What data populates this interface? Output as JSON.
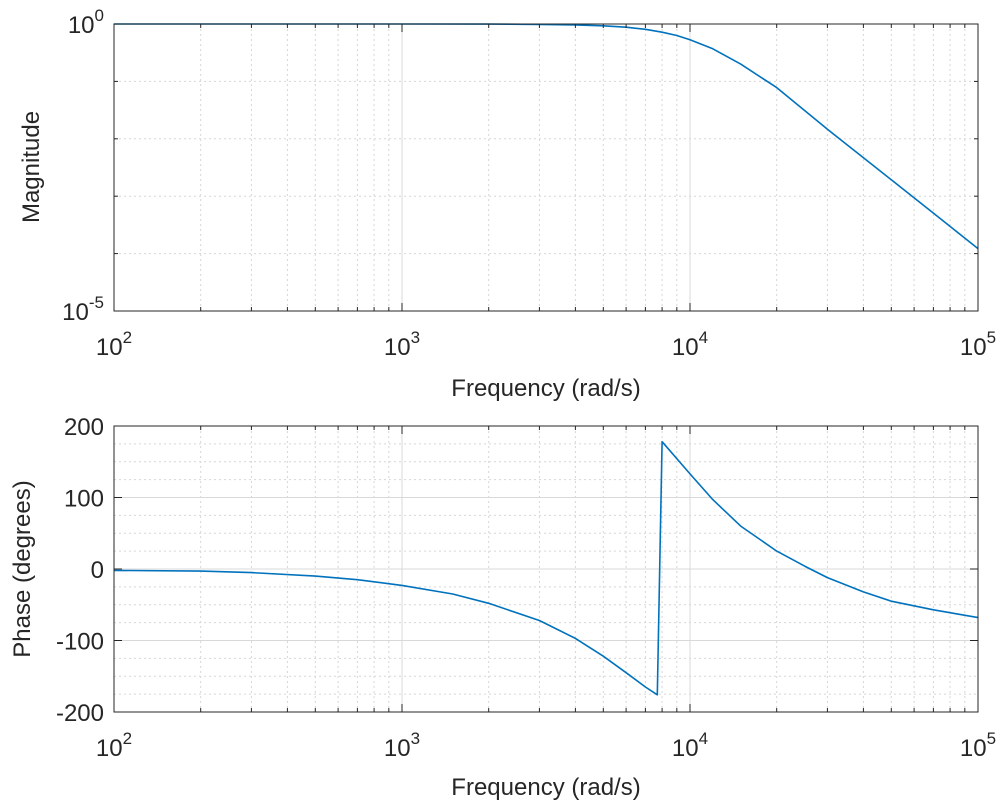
{
  "chart_data": [
    {
      "type": "line",
      "xlabel": "Frequency (rad/s)",
      "ylabel": "Magnitude",
      "xscale": "log",
      "yscale": "log",
      "xlim": [
        100,
        100000
      ],
      "ylim": [
        1e-05,
        1
      ],
      "x_ticks": [
        {
          "value": 100,
          "base": "10",
          "exp": "2"
        },
        {
          "value": 1000,
          "base": "10",
          "exp": "3"
        },
        {
          "value": 10000,
          "base": "10",
          "exp": "4"
        },
        {
          "value": 100000,
          "base": "10",
          "exp": "5"
        }
      ],
      "y_ticks": [
        {
          "value": 1e-05,
          "base": "10",
          "exp": "-5"
        },
        {
          "value": 1,
          "base": "10",
          "exp": "0"
        }
      ],
      "grid": true,
      "minor_grid": true,
      "series": [
        {
          "color": "#0072BD",
          "x": [
            100,
            300,
            1000,
            2000,
            3000,
            4000,
            5000,
            6000,
            7000,
            8000,
            9000,
            10000,
            12000,
            15000,
            20000,
            30000,
            50000,
            70000,
            100000
          ],
          "y": [
            1,
            1,
            1,
            0.995,
            0.985,
            0.965,
            0.93,
            0.88,
            0.81,
            0.72,
            0.63,
            0.53,
            0.37,
            0.2,
            0.078,
            0.0147,
            0.00193,
            0.000507,
            0.000122
          ]
        }
      ]
    },
    {
      "type": "line",
      "xlabel": "Frequency (rad/s)",
      "ylabel": "Phase (degrees)",
      "xscale": "log",
      "xlim": [
        100,
        100000
      ],
      "ylim": [
        -200,
        200
      ],
      "x_ticks": [
        {
          "value": 100,
          "base": "10",
          "exp": "2"
        },
        {
          "value": 1000,
          "base": "10",
          "exp": "3"
        },
        {
          "value": 10000,
          "base": "10",
          "exp": "4"
        },
        {
          "value": 100000,
          "base": "10",
          "exp": "5"
        }
      ],
      "y_ticks": [
        {
          "value": 200,
          "label": "200"
        },
        {
          "value": 100,
          "label": "100"
        },
        {
          "value": 0,
          "label": "0"
        },
        {
          "value": -100,
          "label": "-100"
        },
        {
          "value": -200,
          "label": "-200"
        }
      ],
      "grid": true,
      "minor_grid": true,
      "series": [
        {
          "color": "#0072BD",
          "segments": [
            {
              "x": [
                100,
                200,
                300,
                500,
                700,
                1000,
                1500,
                2000,
                3000,
                4000,
                5000,
                6000,
                7000,
                7700
              ],
              "y": [
                -2,
                -3,
                -5,
                -10,
                -15,
                -23,
                -35,
                -48,
                -72,
                -97,
                -122,
                -145,
                -165,
                -176
              ]
            },
            {
              "x": [
                7700,
                8000
              ],
              "y": [
                -176,
                178
              ]
            },
            {
              "x": [
                8000,
                10000,
                12000,
                15000,
                20000,
                25000,
                30000,
                40000,
                50000,
                70000,
                100000
              ],
              "y": [
                178,
                133,
                97,
                60,
                25,
                4,
                -12,
                -32,
                -45,
                -57,
                -68
              ]
            }
          ]
        }
      ]
    }
  ]
}
